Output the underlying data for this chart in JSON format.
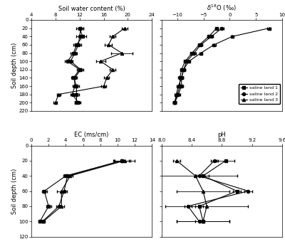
{
  "swc": {
    "depths": [
      20,
      40,
      60,
      80,
      100,
      120,
      140,
      160,
      180,
      200
    ],
    "land1_x": [
      12.0,
      12.5,
      11.5,
      11.0,
      10.0,
      12.0,
      11.0,
      11.5,
      11.5,
      11.5
    ],
    "land1_xerr": [
      0.6,
      0.6,
      0.5,
      0.5,
      0.4,
      0.4,
      0.4,
      0.4,
      0.4,
      0.3
    ],
    "land2_x": [
      12.2,
      12.0,
      11.8,
      11.2,
      10.5,
      12.2,
      11.2,
      11.2,
      10.8,
      11.8
    ],
    "land2_xerr": [
      0.4,
      0.5,
      0.5,
      0.4,
      0.4,
      0.4,
      0.4,
      0.4,
      0.3,
      0.3
    ],
    "land3_x": [
      19.5,
      17.5,
      16.8,
      19.0,
      15.5,
      17.5,
      16.5,
      16.0,
      8.5,
      8.0
    ],
    "land3_xerr": [
      0.5,
      0.5,
      0.6,
      1.8,
      0.8,
      0.5,
      0.4,
      0.4,
      0.3,
      0.3
    ],
    "xlabel": "Soil water content (%)",
    "xlim": [
      4,
      24
    ],
    "xticks": [
      4,
      8,
      12,
      16,
      20,
      24
    ],
    "ylim": [
      220,
      0
    ],
    "yticks": [
      0,
      20,
      40,
      60,
      80,
      100,
      120,
      140,
      160,
      180,
      200,
      220
    ],
    "ylabel": "Soil depth (cm)"
  },
  "d18o": {
    "depths": [
      20,
      40,
      60,
      80,
      100,
      120,
      140,
      160,
      180,
      200
    ],
    "land1_x": [
      -2.5,
      -4.0,
      -5.8,
      -7.2,
      -8.5,
      -9.2,
      -9.5,
      -9.5,
      -10.0,
      -10.5
    ],
    "land1_xerr": [
      0.3,
      0.3,
      0.3,
      0.3,
      0.3,
      0.3,
      0.3,
      0.3,
      0.3,
      0.3
    ],
    "land2_x": [
      -1.5,
      -3.5,
      -5.5,
      -6.8,
      -8.2,
      -8.8,
      -9.2,
      -9.2,
      -9.8,
      -10.5
    ],
    "land2_xerr": [
      0.3,
      0.3,
      0.3,
      0.3,
      0.3,
      0.3,
      0.3,
      0.3,
      0.3,
      0.3
    ],
    "land3_x": [
      7.5,
      0.5,
      -3.0,
      -5.5,
      -7.8,
      -8.8,
      -9.2,
      -9.8,
      -10.2,
      -10.5
    ],
    "land3_xerr": [
      0.3,
      0.3,
      0.3,
      0.3,
      0.3,
      0.3,
      0.3,
      0.3,
      0.3,
      0.3
    ],
    "xlabel": "$\\delta^{18}$O (‰)",
    "xlim": [
      -13,
      10
    ],
    "xticks": [
      -10,
      -5,
      0,
      5,
      10
    ],
    "ylim": [
      220,
      0
    ],
    "yticks": [
      0,
      20,
      40,
      60,
      80,
      100,
      120,
      140,
      160,
      180,
      200,
      220
    ],
    "ylabel": ""
  },
  "ec": {
    "depths": [
      20,
      40,
      60,
      80,
      100
    ],
    "land1_x": [
      10.5,
      4.0,
      1.5,
      2.0,
      1.0
    ],
    "land1_xerr": [
      1.0,
      0.3,
      0.3,
      0.3,
      0.2
    ],
    "land2_x": [
      10.5,
      4.2,
      3.8,
      3.2,
      1.3
    ],
    "land2_xerr": [
      0.8,
      0.3,
      0.3,
      0.3,
      0.2
    ],
    "land3_x": [
      10.8,
      4.5,
      3.5,
      3.5,
      1.4
    ],
    "land3_xerr": [
      1.2,
      0.3,
      0.5,
      0.3,
      0.2
    ],
    "xlabel": "EC (ms/cm)",
    "xlim": [
      0,
      14
    ],
    "xticks": [
      0,
      2,
      4,
      6,
      8,
      10,
      12,
      14
    ],
    "ylim": [
      120,
      0
    ],
    "yticks": [
      0,
      20,
      40,
      60,
      80,
      100,
      120
    ],
    "ylabel": "Soil depth (cm)"
  },
  "ph": {
    "depths": [
      20,
      40,
      60,
      80,
      100
    ],
    "land1_x": [
      8.85,
      8.55,
      9.0,
      8.5,
      8.55
    ],
    "land1_xerr": [
      0.12,
      0.08,
      0.05,
      0.05,
      0.35
    ],
    "land2_x": [
      8.7,
      8.5,
      9.15,
      8.35,
      8.5
    ],
    "land2_xerr": [
      0.05,
      0.05,
      0.05,
      0.05,
      0.05
    ],
    "land3_x": [
      8.2,
      8.45,
      8.55,
      8.6,
      8.55
    ],
    "land3_xerr": [
      0.05,
      0.55,
      0.35,
      0.55,
      0.35
    ],
    "xlabel": "pH",
    "xlim": [
      8.0,
      9.6
    ],
    "xticks": [
      8.0,
      8.4,
      8.8,
      9.2,
      9.6
    ],
    "ylim": [
      120,
      0
    ],
    "yticks": [
      0,
      20,
      40,
      60,
      80,
      100,
      120
    ],
    "ylabel": ""
  },
  "legend": {
    "labels": [
      "saline land 1",
      "saline land 2",
      "saline land 3"
    ],
    "markers": [
      "s",
      "o",
      "^"
    ]
  }
}
